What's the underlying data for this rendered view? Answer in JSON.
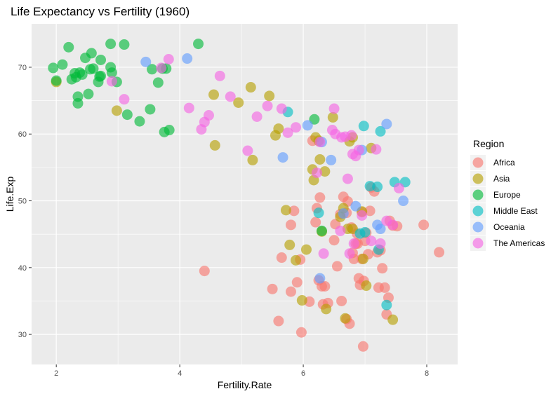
{
  "chart_data": {
    "type": "scatter",
    "title": "Life Expectancy vs Fertility (1960)",
    "xlabel": "Fertility.Rate",
    "ylabel": "Life.Exp",
    "xlim": [
      1.6,
      8.5
    ],
    "ylim": [
      25.5,
      76.5
    ],
    "x_ticks": [
      2,
      4,
      6,
      8
    ],
    "y_ticks": [
      30,
      40,
      50,
      60,
      70
    ],
    "grid": true,
    "legend": {
      "title": "Region",
      "position": "right"
    },
    "series": [
      {
        "name": "Africa",
        "color": "#F8766D",
        "points": [
          [
            4.4,
            39.5
          ],
          [
            5.5,
            36.8
          ],
          [
            5.6,
            32.0
          ],
          [
            5.65,
            41.5
          ],
          [
            5.8,
            36.4
          ],
          [
            5.8,
            46.4
          ],
          [
            5.85,
            48.5
          ],
          [
            5.9,
            37.8
          ],
          [
            5.95,
            41.2
          ],
          [
            5.97,
            30.3
          ],
          [
            6.1,
            34.9
          ],
          [
            6.15,
            59.0
          ],
          [
            6.2,
            46.8
          ],
          [
            6.22,
            48.9
          ],
          [
            6.25,
            38.1
          ],
          [
            6.27,
            50.5
          ],
          [
            6.3,
            37.2
          ],
          [
            6.32,
            34.5
          ],
          [
            6.35,
            37.2
          ],
          [
            6.4,
            34.7
          ],
          [
            6.5,
            44.1
          ],
          [
            6.52,
            46.5
          ],
          [
            6.55,
            40.2
          ],
          [
            6.6,
            48.0
          ],
          [
            6.62,
            35.0
          ],
          [
            6.65,
            50.6
          ],
          [
            6.7,
            48.2
          ],
          [
            6.7,
            32.3
          ],
          [
            6.72,
            49.9
          ],
          [
            6.75,
            31.6
          ],
          [
            6.78,
            46.0
          ],
          [
            6.8,
            42.2
          ],
          [
            6.82,
            41.3
          ],
          [
            6.85,
            43.6
          ],
          [
            6.87,
            45.1
          ],
          [
            6.9,
            38.4
          ],
          [
            6.92,
            37.4
          ],
          [
            6.95,
            48.3
          ],
          [
            6.95,
            41.3
          ],
          [
            6.97,
            28.2
          ],
          [
            6.98,
            38.0
          ],
          [
            7.0,
            44.0
          ],
          [
            7.02,
            45.2
          ],
          [
            7.05,
            42.0
          ],
          [
            7.08,
            48.5
          ],
          [
            7.1,
            52.0
          ],
          [
            7.15,
            51.4
          ],
          [
            7.2,
            42.3
          ],
          [
            7.22,
            37.0
          ],
          [
            7.25,
            42.6
          ],
          [
            7.28,
            39.9
          ],
          [
            7.32,
            37.0
          ],
          [
            7.35,
            33.0
          ],
          [
            7.38,
            35.5
          ],
          [
            7.4,
            47.0
          ],
          [
            7.45,
            46.3
          ],
          [
            7.52,
            46.2
          ],
          [
            7.95,
            46.4
          ],
          [
            8.2,
            42.3
          ],
          [
            6.88,
            43.6
          ]
        ]
      },
      {
        "name": "Asia",
        "color": "#B79F00",
        "points": [
          [
            2.0,
            67.8
          ],
          [
            2.98,
            63.5
          ],
          [
            4.55,
            65.9
          ],
          [
            4.57,
            58.3
          ],
          [
            4.95,
            64.7
          ],
          [
            5.15,
            67.0
          ],
          [
            5.18,
            56.1
          ],
          [
            5.45,
            65.7
          ],
          [
            5.55,
            59.8
          ],
          [
            5.6,
            60.8
          ],
          [
            5.72,
            48.6
          ],
          [
            5.78,
            43.4
          ],
          [
            5.88,
            41.1
          ],
          [
            5.98,
            35.1
          ],
          [
            6.05,
            42.7
          ],
          [
            6.15,
            54.7
          ],
          [
            6.17,
            53.1
          ],
          [
            6.2,
            59.5
          ],
          [
            6.25,
            59.0
          ],
          [
            6.27,
            56.2
          ],
          [
            6.3,
            45.4
          ],
          [
            6.35,
            54.4
          ],
          [
            6.37,
            33.8
          ],
          [
            6.48,
            62.5
          ],
          [
            6.6,
            47.6
          ],
          [
            6.65,
            48.9
          ],
          [
            6.68,
            32.4
          ],
          [
            6.72,
            45.8
          ],
          [
            6.75,
            58.9
          ],
          [
            6.8,
            45.8
          ],
          [
            6.95,
            48.4
          ],
          [
            6.97,
            41.3
          ],
          [
            7.02,
            37.3
          ],
          [
            7.1,
            57.9
          ],
          [
            7.45,
            32.2
          ],
          [
            6.8,
            59.5
          ]
        ]
      },
      {
        "name": "Europe",
        "color": "#00BA38",
        "points": [
          [
            1.95,
            69.9
          ],
          [
            2.0,
            68.0
          ],
          [
            2.1,
            70.4
          ],
          [
            2.2,
            73.0
          ],
          [
            2.25,
            68.2
          ],
          [
            2.3,
            69.1
          ],
          [
            2.32,
            68.5
          ],
          [
            2.35,
            64.6
          ],
          [
            2.35,
            65.6
          ],
          [
            2.38,
            69.2
          ],
          [
            2.42,
            68.9
          ],
          [
            2.47,
            71.4
          ],
          [
            2.52,
            66.0
          ],
          [
            2.55,
            69.7
          ],
          [
            2.57,
            72.1
          ],
          [
            2.6,
            69.8
          ],
          [
            2.68,
            67.8
          ],
          [
            2.7,
            68.6
          ],
          [
            2.72,
            71.1
          ],
          [
            2.72,
            68.7
          ],
          [
            2.88,
            73.5
          ],
          [
            2.88,
            70.0
          ],
          [
            2.9,
            69.2
          ],
          [
            2.98,
            67.8
          ],
          [
            3.1,
            73.4
          ],
          [
            3.15,
            62.9
          ],
          [
            3.35,
            61.9
          ],
          [
            3.52,
            63.7
          ],
          [
            3.55,
            69.7
          ],
          [
            3.65,
            67.7
          ],
          [
            3.72,
            69.8
          ],
          [
            3.75,
            60.3
          ],
          [
            3.78,
            69.8
          ],
          [
            3.83,
            60.6
          ],
          [
            4.3,
            73.5
          ],
          [
            6.18,
            62.2
          ],
          [
            6.3,
            45.5
          ]
        ]
      },
      {
        "name": "Middle East",
        "color": "#00BFC4",
        "points": [
          [
            5.75,
            63.3
          ],
          [
            6.25,
            48.2
          ],
          [
            6.98,
            61.2
          ],
          [
            6.92,
            45.1
          ],
          [
            7.0,
            45.3
          ],
          [
            7.08,
            52.2
          ],
          [
            7.2,
            52.1
          ],
          [
            7.22,
            42.7
          ],
          [
            7.25,
            60.4
          ],
          [
            7.35,
            34.4
          ],
          [
            7.48,
            52.8
          ],
          [
            7.65,
            52.8
          ]
        ]
      },
      {
        "name": "Oceania",
        "color": "#619CFF",
        "points": [
          [
            3.45,
            70.8
          ],
          [
            4.12,
            71.3
          ],
          [
            5.67,
            56.5
          ],
          [
            6.07,
            61.3
          ],
          [
            6.27,
            38.4
          ],
          [
            6.3,
            58.8
          ],
          [
            6.45,
            56.1
          ],
          [
            6.65,
            48.1
          ],
          [
            6.85,
            49.2
          ],
          [
            6.95,
            57.6
          ],
          [
            7.2,
            46.4
          ],
          [
            7.25,
            45.8
          ],
          [
            7.35,
            61.5
          ],
          [
            7.62,
            50.0
          ]
        ]
      },
      {
        "name": "The Americas",
        "color": "#F564E3",
        "points": [
          [
            2.9,
            67.9
          ],
          [
            3.1,
            65.2
          ],
          [
            3.7,
            69.9
          ],
          [
            3.82,
            71.2
          ],
          [
            4.15,
            63.9
          ],
          [
            4.35,
            60.7
          ],
          [
            4.4,
            61.8
          ],
          [
            4.47,
            62.8
          ],
          [
            4.65,
            68.7
          ],
          [
            4.82,
            65.6
          ],
          [
            5.1,
            57.5
          ],
          [
            5.25,
            62.6
          ],
          [
            5.42,
            64.2
          ],
          [
            5.65,
            63.8
          ],
          [
            5.75,
            60.2
          ],
          [
            5.88,
            61.0
          ],
          [
            6.22,
            54.2
          ],
          [
            6.27,
            58.8
          ],
          [
            6.33,
            42.1
          ],
          [
            6.47,
            60.6
          ],
          [
            6.5,
            63.8
          ],
          [
            6.52,
            60.0
          ],
          [
            6.62,
            59.5
          ],
          [
            6.68,
            59.6
          ],
          [
            6.72,
            53.3
          ],
          [
            6.75,
            42.1
          ],
          [
            6.78,
            59.8
          ],
          [
            6.8,
            57.0
          ],
          [
            6.82,
            43.6
          ],
          [
            6.85,
            56.7
          ],
          [
            6.9,
            57.6
          ],
          [
            6.95,
            47.8
          ],
          [
            7.1,
            44.0
          ],
          [
            7.18,
            57.7
          ],
          [
            7.25,
            43.6
          ],
          [
            7.35,
            47.0
          ],
          [
            7.45,
            46.4
          ],
          [
            7.55,
            51.9
          ],
          [
            6.6,
            45.5
          ]
        ]
      }
    ]
  }
}
